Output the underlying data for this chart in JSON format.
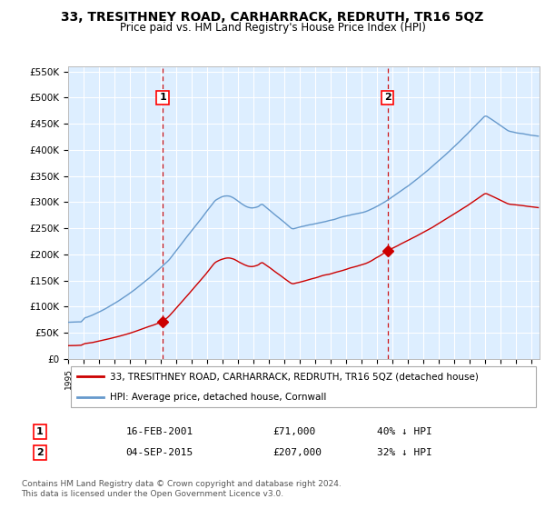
{
  "title": "33, TRESITHNEY ROAD, CARHARRACK, REDRUTH, TR16 5QZ",
  "subtitle": "Price paid vs. HM Land Registry's House Price Index (HPI)",
  "ylim": [
    0,
    560000
  ],
  "yticks": [
    0,
    50000,
    100000,
    150000,
    200000,
    250000,
    300000,
    350000,
    400000,
    450000,
    500000,
    550000
  ],
  "ytick_labels": [
    "£0",
    "£50K",
    "£100K",
    "£150K",
    "£200K",
    "£250K",
    "£300K",
    "£350K",
    "£400K",
    "£450K",
    "£500K",
    "£550K"
  ],
  "xlim_start": 1995.0,
  "xlim_end": 2025.5,
  "sale1_date": 2001.12,
  "sale1_price": 71000,
  "sale1_label": "1",
  "sale2_date": 2015.67,
  "sale2_price": 207000,
  "sale2_label": "2",
  "legend_line1": "33, TRESITHNEY ROAD, CARHARRACK, REDRUTH, TR16 5QZ (detached house)",
  "legend_line2": "HPI: Average price, detached house, Cornwall",
  "table_row1": [
    "1",
    "16-FEB-2001",
    "£71,000",
    "40% ↓ HPI"
  ],
  "table_row2": [
    "2",
    "04-SEP-2015",
    "£207,000",
    "32% ↓ HPI"
  ],
  "footnote": "Contains HM Land Registry data © Crown copyright and database right 2024.\nThis data is licensed under the Open Government Licence v3.0.",
  "bg_color": "#ddeeff",
  "plot_bg": "#ffffff",
  "red_color": "#cc0000",
  "blue_color": "#6699cc",
  "title_fontsize": 10,
  "subtitle_fontsize": 9
}
